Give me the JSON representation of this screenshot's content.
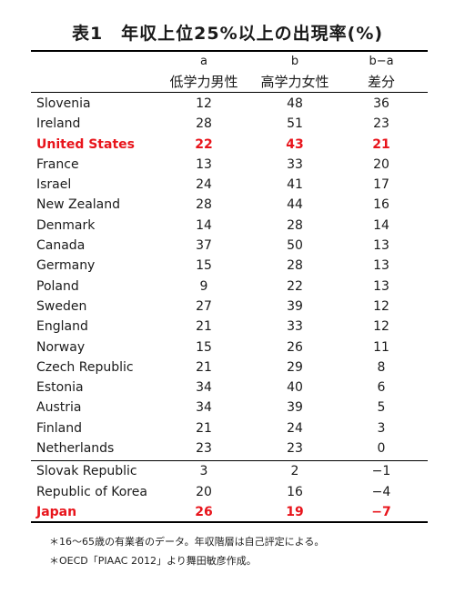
{
  "title": "表1　年収上位25%以上の出現率(%)",
  "columns": {
    "a": {
      "letter": "a",
      "label": "低学力男性"
    },
    "b": {
      "letter": "b",
      "label": "高学力女性"
    },
    "d": {
      "letter": "b−a",
      "label": "差分"
    }
  },
  "rows": [
    {
      "country": "Slovenia",
      "a": "12",
      "b": "48",
      "d": "36"
    },
    {
      "country": "Ireland",
      "a": "28",
      "b": "51",
      "d": "23"
    },
    {
      "country": "United States",
      "a": "22",
      "b": "43",
      "d": "21"
    },
    {
      "country": "France",
      "a": "13",
      "b": "33",
      "d": "20"
    },
    {
      "country": "Israel",
      "a": "24",
      "b": "41",
      "d": "17"
    },
    {
      "country": "New Zealand",
      "a": "28",
      "b": "44",
      "d": "16"
    },
    {
      "country": "Denmark",
      "a": "14",
      "b": "28",
      "d": "14"
    },
    {
      "country": "Canada",
      "a": "37",
      "b": "50",
      "d": "13"
    },
    {
      "country": "Germany",
      "a": "15",
      "b": "28",
      "d": "13"
    },
    {
      "country": "Poland",
      "a": "9",
      "b": "22",
      "d": "13"
    },
    {
      "country": "Sweden",
      "a": "27",
      "b": "39",
      "d": "12"
    },
    {
      "country": "England",
      "a": "21",
      "b": "33",
      "d": "12"
    },
    {
      "country": "Norway",
      "a": "15",
      "b": "26",
      "d": "11"
    },
    {
      "country": "Czech Republic",
      "a": "21",
      "b": "29",
      "d": "8"
    },
    {
      "country": "Estonia",
      "a": "34",
      "b": "40",
      "d": "6"
    },
    {
      "country": "Austria",
      "a": "34",
      "b": "39",
      "d": "5"
    },
    {
      "country": "Finland",
      "a": "21",
      "b": "24",
      "d": "3"
    },
    {
      "country": "Netherlands",
      "a": "23",
      "b": "23",
      "d": "0"
    },
    {
      "country": "Slovak Republic",
      "a": "3",
      "b": "2",
      "d": "−1"
    },
    {
      "country": "Republic of Korea",
      "a": "20",
      "b": "16",
      "d": "−4"
    },
    {
      "country": "Japan",
      "a": "26",
      "b": "19",
      "d": "−7"
    }
  ],
  "highlight_color": "#e8141b",
  "notes": [
    "＊16〜65歳の有業者のデータ。年収階層は自己評定による。",
    "＊OECD「PIAAC 2012」より舞田敏彦作成。"
  ]
}
